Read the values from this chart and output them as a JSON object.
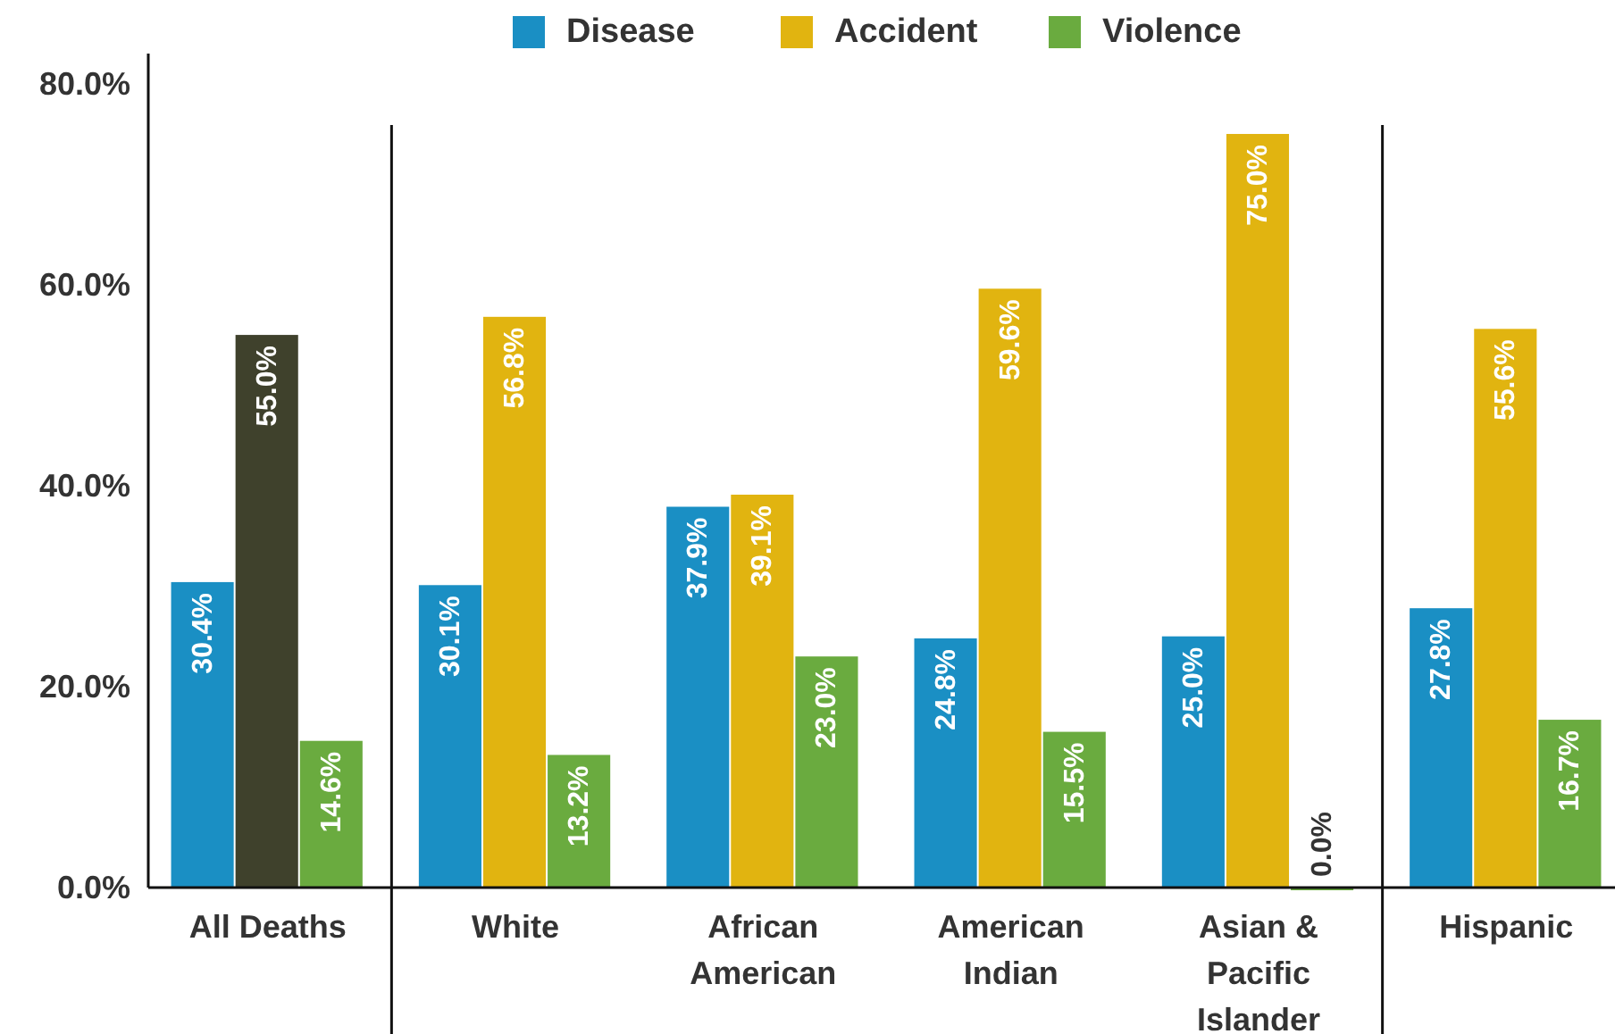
{
  "chart_data": {
    "type": "bar",
    "categories": [
      "All Deaths",
      "White",
      "African American",
      "American Indian",
      "Asian & Pacific Islander",
      "Hispanic"
    ],
    "series": [
      {
        "name": "Disease",
        "color": "#1a8fc4",
        "values": [
          30.4,
          30.1,
          37.9,
          24.8,
          25.0,
          27.8
        ],
        "value_labels": [
          "30.4%",
          "30.1%",
          "37.9%",
          "24.8%",
          "25.0%",
          "27.8%"
        ]
      },
      {
        "name": "Accident",
        "color": "#e1b410",
        "colors": [
          "#3f412c",
          "#e1b410",
          "#e1b410",
          "#e1b410",
          "#e1b410",
          "#e1b410"
        ],
        "values": [
          55.0,
          56.8,
          39.1,
          59.6,
          75.0,
          55.6
        ],
        "value_labels": [
          "55.0%",
          "56.8%",
          "39.1%",
          "59.6%",
          "75.0%",
          "55.6%"
        ]
      },
      {
        "name": "Violence",
        "color": "#6aab3f",
        "values": [
          14.6,
          13.2,
          23.0,
          15.5,
          0.0,
          16.7
        ],
        "value_labels": [
          "14.6%",
          "13.2%",
          "23.0%",
          "15.5%",
          "0.0%",
          "16.7%"
        ]
      }
    ],
    "ylim": [
      0,
      83
    ],
    "yticks": [
      {
        "value": 0,
        "label": "0.0%"
      },
      {
        "value": 20,
        "label": "20.0%"
      },
      {
        "value": 40,
        "label": "40.0%"
      },
      {
        "value": 60,
        "label": "60.0%"
      },
      {
        "value": 80,
        "label": "80.0%"
      }
    ],
    "legend": "top",
    "grid": false
  }
}
